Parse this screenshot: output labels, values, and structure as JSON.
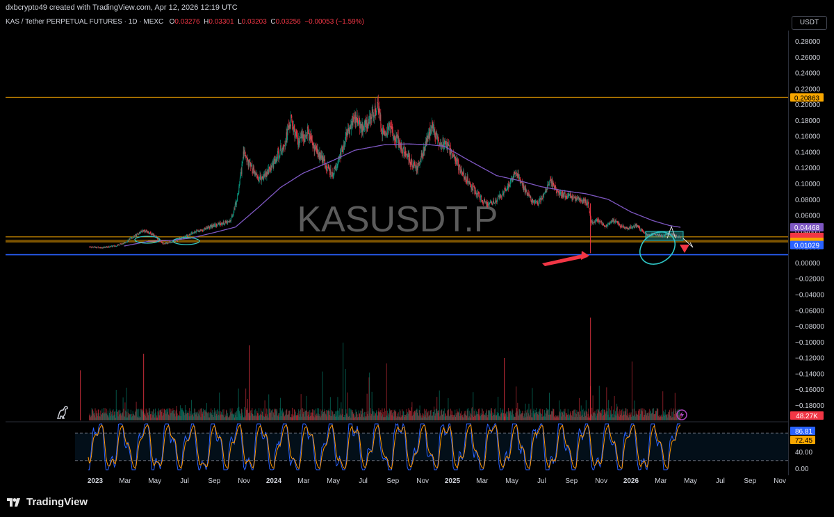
{
  "header": {
    "credit": "dxbcrypto49 created with TradingView.com, Apr 12, 2026 12:19 UTC",
    "symbol": "KAS / Tether PERPETUAL FUTURES · 1D · MEXC",
    "o_label": "O",
    "o_value": "0.03276",
    "h_label": "H",
    "h_value": "0.03301",
    "l_label": "L",
    "l_value": "0.03203",
    "c_label": "C",
    "c_value": "0.03256",
    "change": "−0.00053 (−1.59%)",
    "currency_button": "USDT"
  },
  "watermark": "KASUSDT.P",
  "brand": "TradingView",
  "icons": {
    "logo": "tradingview-logo-icon",
    "dino": "dinosaur-icon",
    "bolt": "lightning-icon"
  },
  "colors": {
    "up": "#089981",
    "down": "#f23645",
    "ma": "#7e57c2",
    "level_orange": "#f7a600",
    "level_blue": "#2962ff",
    "annot_cyan": "#2ec4c4",
    "arrow_red": "#f23645",
    "osc_k": "#2962ff",
    "osc_d": "#ff9800"
  },
  "chart_data": {
    "type": "candlestick",
    "x_ticks": [
      "2023",
      "Mar",
      "May",
      "Jul",
      "Sep",
      "Nov",
      "2024",
      "Mar",
      "May",
      "Jul",
      "Sep",
      "Nov",
      "2025",
      "Mar",
      "May",
      "Jul",
      "Sep",
      "Nov",
      "2026",
      "Mar",
      "May",
      "Jul",
      "Sep",
      "Nov"
    ],
    "x_ticks_bold": [
      "2023",
      "2024",
      "2025",
      "2026"
    ],
    "y_ticks": [
      "0.28000",
      "0.26000",
      "0.24000",
      "0.22000",
      "0.20000",
      "0.18000",
      "0.16000",
      "0.14000",
      "0.12000",
      "0.10000",
      "0.08000",
      "0.06000",
      "0.04000",
      "0.02000",
      "0.00000",
      "−0.02000",
      "−0.04000",
      "−0.06000",
      "−0.08000",
      "−0.10000",
      "−0.12000",
      "−0.14000",
      "−0.16000",
      "−0.18000"
    ],
    "price_anchors": [
      [
        "2022-12-20",
        0.02
      ],
      [
        "2023-01-15",
        0.019
      ],
      [
        "2023-02-10",
        0.021
      ],
      [
        "2023-03-05",
        0.026
      ],
      [
        "2023-03-25",
        0.035
      ],
      [
        "2023-04-10",
        0.041
      ],
      [
        "2023-05-01",
        0.035
      ],
      [
        "2023-05-20",
        0.024
      ],
      [
        "2023-06-10",
        0.027
      ],
      [
        "2023-07-01",
        0.032
      ],
      [
        "2023-07-20",
        0.038
      ],
      [
        "2023-08-10",
        0.042
      ],
      [
        "2023-09-01",
        0.047
      ],
      [
        "2023-09-20",
        0.05
      ],
      [
        "2023-10-05",
        0.053
      ],
      [
        "2023-10-20",
        0.085
      ],
      [
        "2023-11-01",
        0.14
      ],
      [
        "2023-11-15",
        0.12
      ],
      [
        "2023-12-01",
        0.105
      ],
      [
        "2023-12-20",
        0.115
      ],
      [
        "2024-01-05",
        0.13
      ],
      [
        "2024-01-25",
        0.155
      ],
      [
        "2024-02-05",
        0.18
      ],
      [
        "2024-02-20",
        0.15
      ],
      [
        "2024-03-10",
        0.165
      ],
      [
        "2024-03-25",
        0.145
      ],
      [
        "2024-04-15",
        0.125
      ],
      [
        "2024-05-01",
        0.11
      ],
      [
        "2024-05-15",
        0.135
      ],
      [
        "2024-06-01",
        0.165
      ],
      [
        "2024-06-15",
        0.185
      ],
      [
        "2024-06-30",
        0.17
      ],
      [
        "2024-07-15",
        0.18
      ],
      [
        "2024-08-01",
        0.2
      ],
      [
        "2024-08-10",
        0.165
      ],
      [
        "2024-08-25",
        0.17
      ],
      [
        "2024-09-10",
        0.155
      ],
      [
        "2024-09-25",
        0.14
      ],
      [
        "2024-10-10",
        0.125
      ],
      [
        "2024-10-20",
        0.12
      ],
      [
        "2024-11-05",
        0.145
      ],
      [
        "2024-11-20",
        0.175
      ],
      [
        "2024-12-01",
        0.155
      ],
      [
        "2024-12-20",
        0.15
      ],
      [
        "2025-01-05",
        0.13
      ],
      [
        "2025-01-25",
        0.11
      ],
      [
        "2025-02-10",
        0.095
      ],
      [
        "2025-03-01",
        0.08
      ],
      [
        "2025-03-15",
        0.072
      ],
      [
        "2025-04-05",
        0.082
      ],
      [
        "2025-04-25",
        0.096
      ],
      [
        "2025-05-10",
        0.115
      ],
      [
        "2025-05-25",
        0.095
      ],
      [
        "2025-06-10",
        0.08
      ],
      [
        "2025-06-25",
        0.074
      ],
      [
        "2025-07-10",
        0.09
      ],
      [
        "2025-07-20",
        0.105
      ],
      [
        "2025-08-01",
        0.09
      ],
      [
        "2025-08-20",
        0.085
      ],
      [
        "2025-09-05",
        0.082
      ],
      [
        "2025-09-20",
        0.079
      ],
      [
        "2025-10-05",
        0.075
      ],
      [
        "2025-10-12",
        0.05
      ],
      [
        "2025-10-25",
        0.054
      ],
      [
        "2025-11-10",
        0.045
      ],
      [
        "2025-11-25",
        0.054
      ],
      [
        "2025-12-10",
        0.047
      ],
      [
        "2025-12-25",
        0.043
      ],
      [
        "2026-01-10",
        0.047
      ],
      [
        "2026-01-25",
        0.04
      ],
      [
        "2026-02-05",
        0.034
      ],
      [
        "2026-02-20",
        0.036
      ],
      [
        "2026-03-05",
        0.033
      ],
      [
        "2026-03-20",
        0.037
      ],
      [
        "2026-04-01",
        0.034
      ],
      [
        "2026-04-12",
        0.0326
      ]
    ],
    "ma_anchors": [
      [
        "2023-03-01",
        0.021
      ],
      [
        "2023-04-20",
        0.027
      ],
      [
        "2023-06-01",
        0.028
      ],
      [
        "2023-07-15",
        0.031
      ],
      [
        "2023-09-01",
        0.038
      ],
      [
        "2023-10-15",
        0.045
      ],
      [
        "2023-12-01",
        0.07
      ],
      [
        "2024-01-15",
        0.095
      ],
      [
        "2024-03-01",
        0.113
      ],
      [
        "2024-05-01",
        0.129
      ],
      [
        "2024-06-15",
        0.142
      ],
      [
        "2024-08-15",
        0.149
      ],
      [
        "2024-10-01",
        0.15
      ],
      [
        "2024-11-15",
        0.149
      ],
      [
        "2024-12-15",
        0.147
      ],
      [
        "2025-02-01",
        0.13
      ],
      [
        "2025-04-01",
        0.11
      ],
      [
        "2025-05-15",
        0.104
      ],
      [
        "2025-07-01",
        0.096
      ],
      [
        "2025-08-15",
        0.091
      ],
      [
        "2025-10-01",
        0.087
      ],
      [
        "2025-11-15",
        0.08
      ],
      [
        "2026-01-01",
        0.064
      ],
      [
        "2026-02-15",
        0.053
      ],
      [
        "2026-03-20",
        0.047
      ],
      [
        "2026-04-12",
        0.0447
      ]
    ],
    "price_labels": [
      {
        "value": "0.20863",
        "price": 0.20863,
        "bg": "#f7a600",
        "fg": "#000"
      },
      {
        "value": "0.04468",
        "price": 0.04468,
        "bg": "#7e57c2",
        "fg": "#fff"
      },
      {
        "value": "0.03256",
        "price": 0.03256,
        "bg": "#f23645",
        "fg": "#fff"
      },
      {
        "value": "11:40:31",
        "price": 0.03,
        "bg": "#f23645",
        "fg": "#fff"
      },
      {
        "value": "0.03230",
        "price": 0.0283,
        "bg": "#f23645",
        "fg": "#fff"
      },
      {
        "value": "0.02929",
        "price": 0.0263,
        "bg": "#f7a600",
        "fg": "#000"
      },
      {
        "value": "0.02059",
        "price": 0.0243,
        "bg": "#f7a600",
        "fg": "#000"
      },
      {
        "value": "0.01029",
        "price": 0.0223,
        "bg": "#2962ff",
        "fg": "#fff"
      }
    ],
    "volume_label": "48.27K",
    "oscillator_ticks": [
      "86.81",
      "72.45",
      "40.00",
      "0.00"
    ],
    "oscillator_levels": [
      80,
      20
    ]
  }
}
